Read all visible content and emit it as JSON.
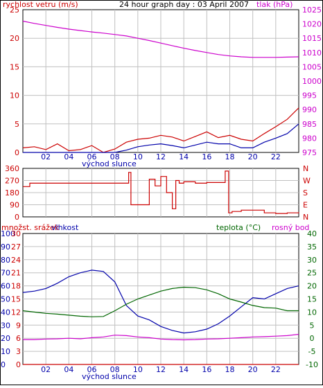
{
  "colors": {
    "background": "#ffffff",
    "border": "#000000",
    "grid": "#c0c0c0",
    "red": "#cc0000",
    "blue": "#0000aa",
    "magenta": "#cc00cc",
    "green": "#006600"
  },
  "x_ticks": [
    "02",
    "04",
    "06",
    "08",
    "10",
    "12",
    "14",
    "16",
    "18",
    "20",
    "22"
  ],
  "sunrise_label": "východ slunce",
  "chart_data": [
    {
      "type": "line",
      "title": "24 hour graph day : 03 April 2007",
      "y_left_label": "rychlost vetru (m/s)",
      "y_right_label": "tlak (hPa)",
      "y_left_ticks": [
        "25",
        "20",
        "15",
        "10",
        "5",
        "0"
      ],
      "y_right_ticks": [
        "1025",
        "1020",
        "1015",
        "1010",
        "1005",
        "1000",
        "995",
        "990",
        "985",
        "980",
        "975"
      ],
      "ylim_left": [
        0,
        25
      ],
      "ylim_right": [
        975,
        1025
      ],
      "x_hours": [
        0,
        1,
        2,
        3,
        4,
        5,
        6,
        7,
        8,
        9,
        10,
        11,
        12,
        13,
        14,
        15,
        16,
        17,
        18,
        19,
        20,
        21,
        22,
        23,
        24
      ],
      "series": [
        {
          "name_key": "pressure",
          "axis": "right",
          "color_key": "magenta",
          "values": [
            1021,
            1020.2,
            1019.5,
            1018.8,
            1018.2,
            1017.7,
            1017.2,
            1016.8,
            1016.3,
            1015.8,
            1015.0,
            1014.2,
            1013.3,
            1012.4,
            1011.5,
            1010.7,
            1010.0,
            1009.3,
            1008.8,
            1008.5,
            1008.3,
            1008.3,
            1008.3,
            1008.4,
            1008.5
          ]
        },
        {
          "name_key": "gust",
          "axis": "left",
          "color_key": "red",
          "values": [
            0.8,
            1,
            0.5,
            1.5,
            0.3,
            0.5,
            1.2,
            0,
            0.6,
            1.8,
            2.3,
            2.5,
            3.0,
            2.7,
            2.0,
            2.8,
            3.6,
            2.6,
            3.0,
            2.3,
            2.0,
            3.3,
            4.5,
            5.8,
            7.8
          ]
        },
        {
          "name_key": "wind",
          "axis": "left",
          "color_key": "blue",
          "values": [
            0,
            0,
            0,
            0,
            0,
            0,
            0,
            0,
            0,
            0.4,
            1.0,
            1.3,
            1.5,
            1.2,
            0.8,
            1.3,
            1.8,
            1.5,
            1.5,
            0.8,
            0.8,
            1.8,
            2.5,
            3.3,
            5.0
          ]
        }
      ]
    },
    {
      "type": "line",
      "y_left_ticks": [
        "360",
        "270",
        "180",
        "90",
        "0"
      ],
      "y_right_ticks": [
        "N",
        "W",
        "S",
        "E",
        "N"
      ],
      "ylim": [
        0,
        360
      ],
      "x_hours": [
        0,
        0.4,
        0.6,
        5,
        9.2,
        9.4,
        10.6,
        11,
        11.5,
        12,
        12.5,
        13,
        13.3,
        13.6,
        14,
        15,
        16,
        17.3,
        17.6,
        17.9,
        18.2,
        19,
        21,
        22,
        23,
        24
      ],
      "values": [
        225,
        225,
        250,
        250,
        330,
        90,
        90,
        280,
        230,
        300,
        180,
        60,
        270,
        250,
        260,
        250,
        255,
        255,
        340,
        30,
        40,
        50,
        30,
        25,
        30,
        35
      ],
      "color_key": "red"
    },
    {
      "type": "line",
      "y_label_left_1": "množst. srážek",
      "y_label_left_2": "vlhkost",
      "y_label_right_1": "teplota (°C)",
      "y_label_right_2": "rosný bod",
      "humidity_ticks": [
        "100",
        "90",
        "80",
        "70",
        "60",
        "50",
        "40",
        "30",
        "20",
        "10",
        "0"
      ],
      "rain_ticks": [
        "30",
        "27",
        "24",
        "21",
        "18",
        "15",
        "12",
        "9",
        "6",
        "3",
        "0"
      ],
      "temp_ticks": [
        "40",
        "35",
        "30",
        "25",
        "20",
        "15",
        "10",
        "5",
        "0",
        "-5",
        "-10"
      ],
      "ylim_humidity": [
        0,
        100
      ],
      "ylim_temp": [
        -10,
        40
      ],
      "x_hours": [
        0,
        1,
        2,
        3,
        4,
        5,
        6,
        7,
        8,
        9,
        10,
        11,
        12,
        13,
        14,
        15,
        16,
        17,
        18,
        19,
        20,
        21,
        22,
        23,
        24
      ],
      "series": [
        {
          "name_key": "humidity",
          "axis": "left",
          "color_key": "blue",
          "values": [
            55,
            56,
            58,
            62,
            67,
            70,
            72,
            71,
            63,
            45,
            37,
            34,
            29,
            26,
            24,
            25,
            27,
            31,
            37,
            44,
            51,
            50,
            54,
            58,
            60
          ]
        },
        {
          "name_key": "temperature",
          "axis": "right",
          "color_key": "green",
          "values": [
            10.5,
            10,
            9.5,
            9.2,
            8.8,
            8.4,
            8.2,
            8.3,
            10.5,
            13,
            15,
            16.5,
            18,
            19,
            19.5,
            19.3,
            18.5,
            17,
            15,
            13.8,
            12.5,
            11.7,
            11.5,
            10.5,
            10.5
          ]
        },
        {
          "name_key": "dewpoint",
          "axis": "right",
          "color_key": "magenta",
          "values": [
            -0.5,
            -0.5,
            -0.3,
            -0.2,
            0,
            -0.2,
            0.2,
            0.5,
            1.2,
            1.0,
            0.5,
            0.2,
            -0.3,
            -0.5,
            -0.6,
            -0.5,
            -0.3,
            -0.2,
            0,
            0.2,
            0.5,
            0.6,
            0.8,
            1.0,
            1.5
          ]
        },
        {
          "name_key": "rain",
          "axis": "left",
          "color_key": "red",
          "values": [
            0,
            0,
            0,
            0,
            0,
            0,
            0,
            0,
            0,
            0,
            0,
            0,
            0,
            0,
            0,
            0,
            0,
            0,
            0,
            0,
            0,
            0,
            0,
            0,
            0
          ]
        }
      ]
    }
  ]
}
